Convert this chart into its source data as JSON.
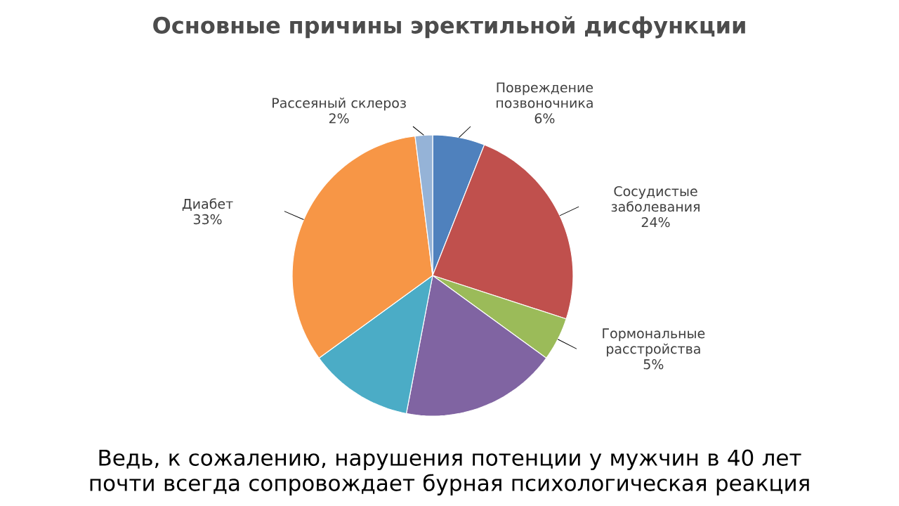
{
  "chart_data": {
    "type": "pie",
    "title": "Основные причины эректильной дисфункции",
    "categories": [
      "Повреждение позвоночника",
      "Сосудистые заболевания",
      "Гормональные расстройства",
      null,
      null,
      "Диабет",
      "Рассеяный склероз"
    ],
    "values": [
      6,
      24,
      5,
      18,
      12,
      33,
      2
    ],
    "value_labels": [
      "6%",
      "24%",
      "5%",
      null,
      null,
      "33%",
      "2%"
    ],
    "colors": [
      "#4f81bd",
      "#c0504d",
      "#9bbb59",
      "#8064a2",
      "#4bacc6",
      "#f79646",
      "#95b3d7"
    ],
    "annotations": [
      "Ведь, к сожалению, нарушения потенции у мужчин в 40 лет почти всегда сопровождает бурная психологическая реакция"
    ]
  }
}
